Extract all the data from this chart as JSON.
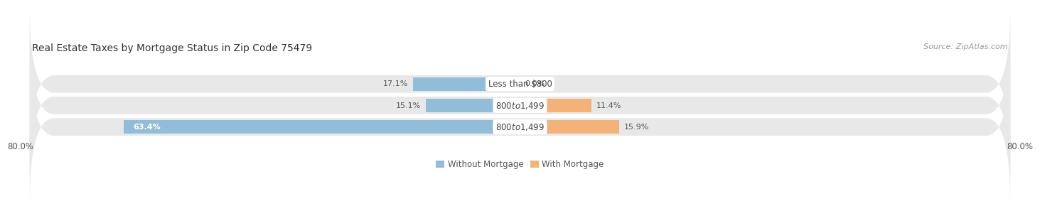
{
  "title": "Real Estate Taxes by Mortgage Status in Zip Code 75479",
  "source": "Source: ZipAtlas.com",
  "rows": [
    {
      "label": "Less than $800",
      "without_mortgage": 17.1,
      "with_mortgage": 0.0
    },
    {
      "label": "$800 to $1,499",
      "without_mortgage": 15.1,
      "with_mortgage": 11.4
    },
    {
      "label": "$800 to $1,499",
      "without_mortgage": 63.4,
      "with_mortgage": 15.9
    }
  ],
  "x_left_label": "80.0%",
  "x_right_label": "80.0%",
  "x_min": -80,
  "x_max": 80,
  "color_without": "#92BDD8",
  "color_with": "#F2B27A",
  "color_bg_row": "#E8E8E8",
  "bar_height": 0.62,
  "legend_label_without": "Without Mortgage",
  "legend_label_with": "With Mortgage",
  "title_fontsize": 10,
  "source_fontsize": 8,
  "label_fontsize": 8.5,
  "pct_fontsize": 8,
  "tick_fontsize": 8.5
}
